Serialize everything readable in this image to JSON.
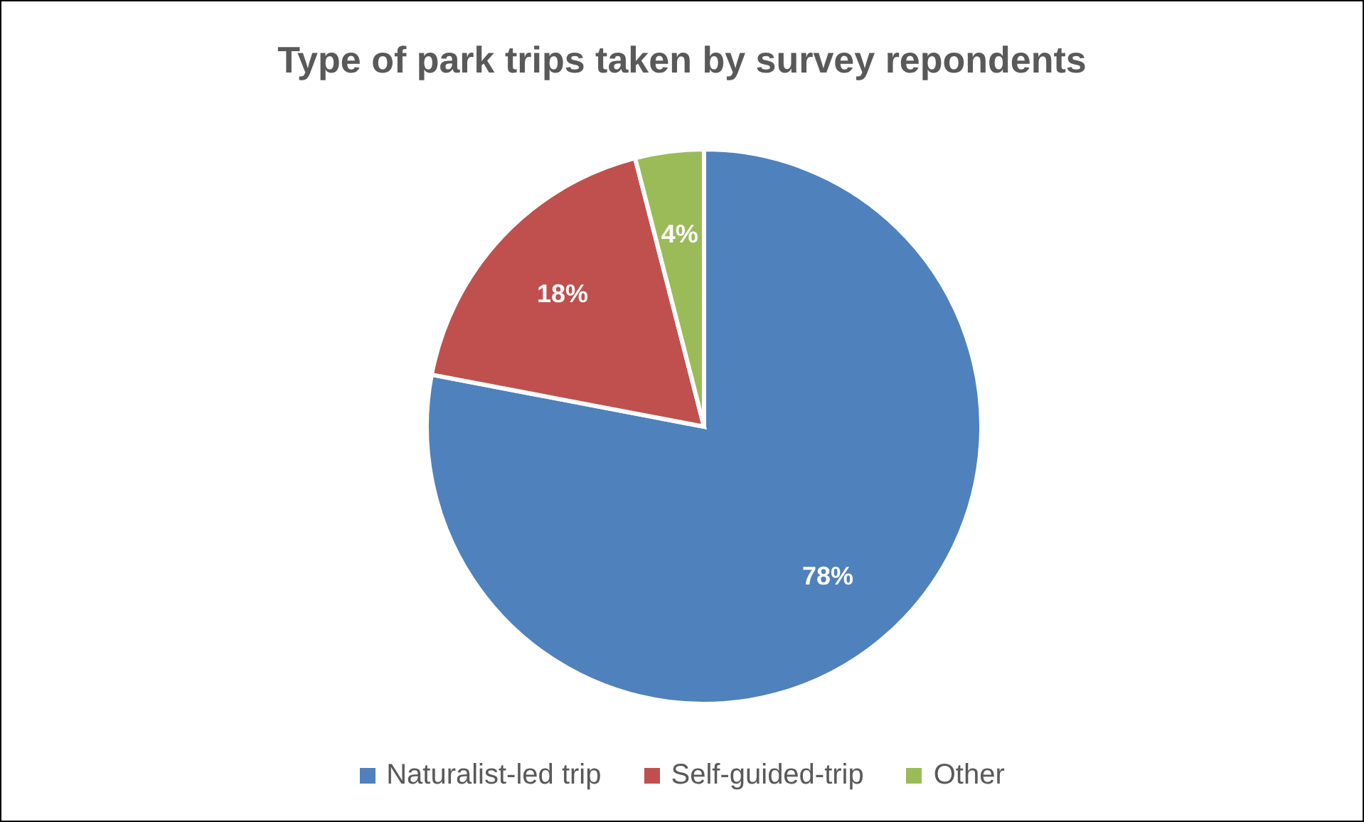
{
  "chart_data": {
    "type": "pie",
    "title": "Type of park trips taken by survey repondents",
    "categories": [
      "Naturalist-led trip",
      "Self-guided-trip",
      "Other"
    ],
    "values": [
      78,
      18,
      4
    ],
    "colors": [
      "#4f81bd",
      "#c0504d",
      "#9bbb59"
    ],
    "value_labels": [
      "78%",
      "18%",
      "4%"
    ],
    "legend": "bottom"
  }
}
